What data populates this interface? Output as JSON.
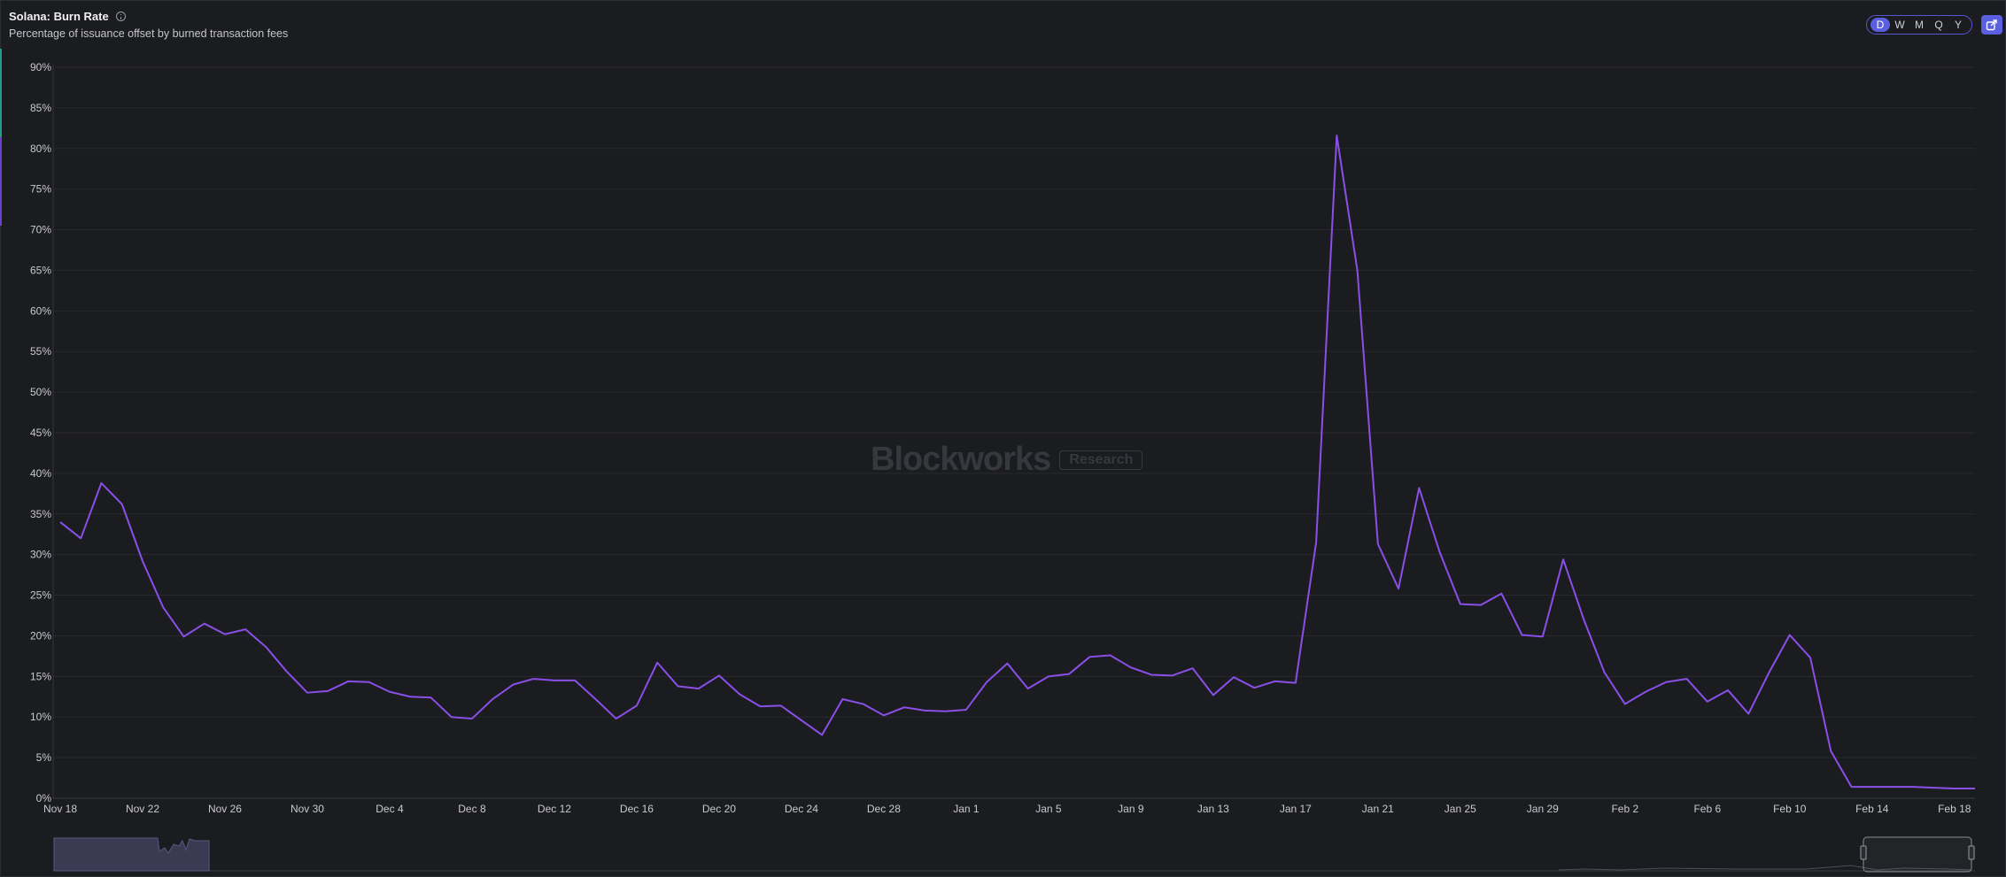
{
  "header": {
    "title": "Solana: Burn Rate",
    "subtitle": "Percentage of issuance offset by burned transaction fees"
  },
  "periods": [
    {
      "label": "D",
      "active": true
    },
    {
      "label": "W",
      "active": false
    },
    {
      "label": "M",
      "active": false
    },
    {
      "label": "Q",
      "active": false
    },
    {
      "label": "Y",
      "active": false
    }
  ],
  "icons": {
    "info": "info-icon",
    "export": "export-chart-icon"
  },
  "watermark": {
    "brand": "Blockworks",
    "tag": "Research"
  },
  "colors": {
    "line": "#8a4fe6",
    "background": "#1b1c20",
    "accent": "#5a5fe0"
  },
  "chart_data": {
    "type": "line",
    "title": "Solana: Burn Rate",
    "ylabel": "",
    "xlabel": "",
    "ylim": [
      0,
      90
    ],
    "y_unit": "%",
    "y_ticks": [
      0,
      5,
      10,
      15,
      20,
      25,
      30,
      35,
      40,
      45,
      50,
      55,
      60,
      65,
      70,
      75,
      80,
      85,
      90
    ],
    "x_tick_labels": [
      "Nov 18",
      "Nov 22",
      "Nov 26",
      "Nov 30",
      "Dec 4",
      "Dec 8",
      "Dec 12",
      "Dec 16",
      "Dec 20",
      "Dec 24",
      "Dec 28",
      "Jan 1",
      "Jan 5",
      "Jan 9",
      "Jan 13",
      "Jan 17",
      "Jan 21",
      "Jan 25",
      "Jan 29",
      "Feb 2",
      "Feb 6",
      "Feb 10",
      "Feb 14",
      "Feb 18"
    ],
    "grid": true,
    "series": [
      {
        "values": [
          34.0,
          32.0,
          38.8,
          36.2,
          29.2,
          23.5,
          19.9,
          21.5,
          20.2,
          20.8,
          18.6,
          15.6,
          13.0,
          13.2,
          14.4,
          14.3,
          13.1,
          12.5,
          12.4,
          10.0,
          9.8,
          12.2,
          14.0,
          14.7,
          14.5,
          14.5,
          12.2,
          9.8,
          11.4,
          16.7,
          13.8,
          13.5,
          15.1,
          12.8,
          11.3,
          11.4,
          9.6,
          7.8,
          12.2,
          11.6,
          10.2,
          11.2,
          10.8,
          10.7,
          10.9,
          14.3,
          16.6,
          13.5,
          15.0,
          15.3,
          17.4,
          17.6,
          16.1,
          15.2,
          15.1,
          16.0,
          12.7,
          14.9,
          13.6,
          14.4,
          14.2,
          31.5,
          81.6,
          65.0,
          31.3,
          25.8,
          38.2,
          30.3,
          23.9,
          23.8,
          25.2,
          20.1,
          19.9,
          29.4,
          22.0,
          15.5,
          11.6,
          13.1,
          14.3,
          14.7,
          11.9,
          13.3,
          10.4,
          15.5,
          20.1,
          17.3,
          5.8,
          1.4,
          1.4,
          1.4,
          1.4,
          1.3,
          1.2,
          1.2
        ]
      }
    ]
  }
}
